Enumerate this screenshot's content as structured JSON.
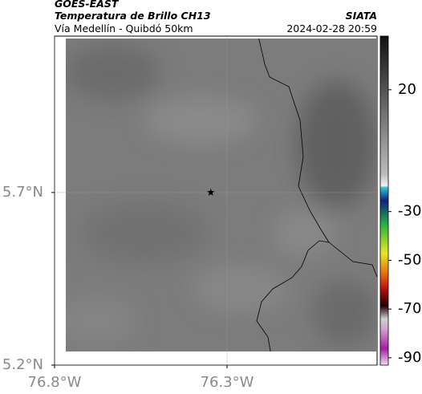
{
  "header": {
    "source": "GOES-EAST",
    "product": "Temperatura de Brillo CH13",
    "region": "Vía Medellín - Quibdó 50km",
    "org": "SIATA",
    "datetime": "2024-02-28 20:59"
  },
  "map": {
    "xlim": [
      -76.8,
      -75.865
    ],
    "ylim": [
      5.2,
      6.153
    ],
    "xticks": [
      {
        "value": -76.8,
        "label": "76.8°W"
      },
      {
        "value": -76.3,
        "label": "76.3°W"
      }
    ],
    "yticks": [
      {
        "value": 5.2,
        "label": "5.2°N"
      },
      {
        "value": 5.7,
        "label": "5.7°N"
      }
    ],
    "grid": true,
    "markers": [
      {
        "lon": -76.347,
        "lat": 5.7
      }
    ]
  },
  "colorbar": {
    "lim": [
      -93,
      42
    ],
    "ticks": [
      20,
      -30,
      -50,
      -70,
      -90
    ]
  }
}
